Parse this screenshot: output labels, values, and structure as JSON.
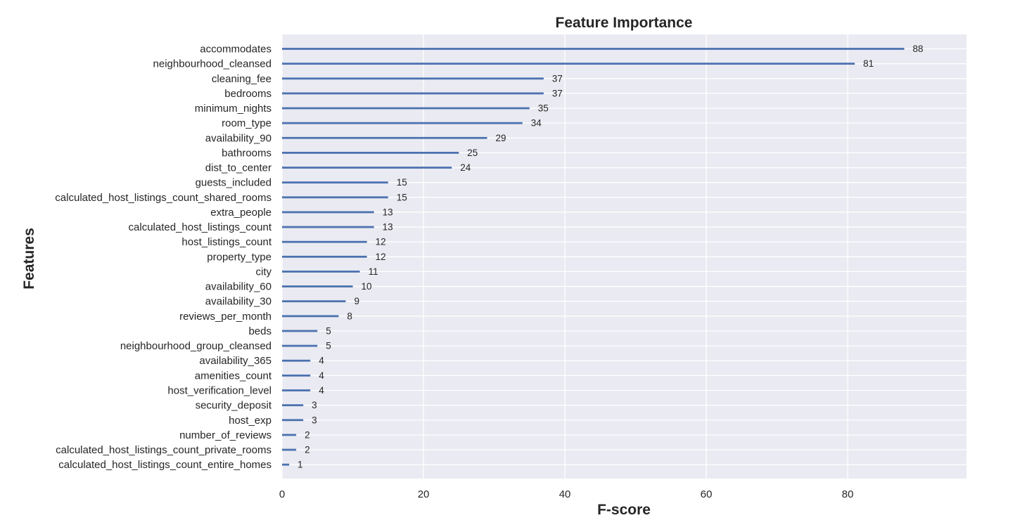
{
  "chart_data": {
    "type": "bar",
    "orientation": "horizontal",
    "title": "Feature Importance",
    "xlabel": "F-score",
    "ylabel": "Features",
    "xlim": [
      0,
      96.8
    ],
    "xticks": [
      0,
      20,
      40,
      60,
      80
    ],
    "grid": true,
    "background": "#eaeaf2",
    "bar_color": "#4c72b0",
    "categories": [
      "accommodates",
      "neighbourhood_cleansed",
      "cleaning_fee",
      "bedrooms",
      "minimum_nights",
      "room_type",
      "availability_90",
      "bathrooms",
      "dist_to_center",
      "guests_included",
      "calculated_host_listings_count_shared_rooms",
      "extra_people",
      "calculated_host_listings_count",
      "host_listings_count",
      "property_type",
      "city",
      "availability_60",
      "availability_30",
      "reviews_per_month",
      "beds",
      "neighbourhood_group_cleansed",
      "availability_365",
      "amenities_count",
      "host_verification_level",
      "security_deposit",
      "host_exp",
      "number_of_reviews",
      "calculated_host_listings_count_private_rooms",
      "calculated_host_listings_count_entire_homes"
    ],
    "values": [
      88,
      81,
      37,
      37,
      35,
      34,
      29,
      25,
      24,
      15,
      15,
      13,
      13,
      12,
      12,
      11,
      10,
      9,
      8,
      5,
      5,
      4,
      4,
      4,
      3,
      3,
      2,
      2,
      1
    ]
  }
}
